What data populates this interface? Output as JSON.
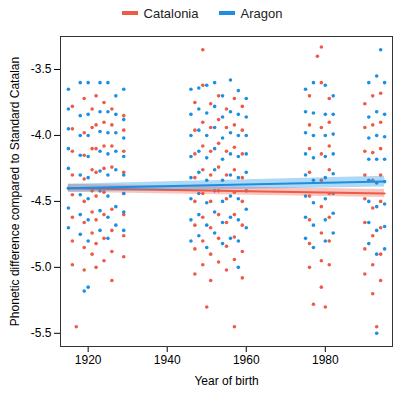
{
  "chart_data": {
    "type": "scatter",
    "xlabel": "Year of birth",
    "ylabel": "Phonetic difference compared to Standard Catalan",
    "legend": "top",
    "xlim": [
      1913,
      1997
    ],
    "ylim": [
      -5.6,
      -3.25
    ],
    "xticks": [
      1920,
      1940,
      1960,
      1980
    ],
    "yticks": [
      -5.5,
      {
        "value": -5,
        "label": "-5.0"
      },
      -4.5,
      {
        "value": -4,
        "label": "-4.0"
      },
      -3.5
    ],
    "series": [
      {
        "name": "Catalonia",
        "color": "#ee5a45",
        "marker": "circle",
        "x": [
          1916,
          1916,
          1916,
          1916,
          1916,
          1916,
          1916,
          1916,
          1919,
          1919,
          1919,
          1919,
          1919,
          1919,
          1919,
          1919,
          1921,
          1921,
          1921,
          1921,
          1921,
          1921,
          1921,
          1921,
          1922,
          1922,
          1922,
          1922,
          1922,
          1922,
          1922,
          1922,
          1924,
          1924,
          1924,
          1924,
          1924,
          1924,
          1924,
          1924,
          1926,
          1926,
          1926,
          1926,
          1926,
          1926,
          1926,
          1926,
          1929,
          1929,
          1929,
          1929,
          1929,
          1929,
          1929,
          1929,
          1947,
          1947,
          1947,
          1947,
          1947,
          1947,
          1947,
          1947,
          1949,
          1949,
          1949,
          1949,
          1949,
          1949,
          1949,
          1949,
          1951,
          1951,
          1951,
          1951,
          1951,
          1951,
          1951,
          1951,
          1953,
          1953,
          1953,
          1953,
          1953,
          1953,
          1953,
          1953,
          1955,
          1955,
          1955,
          1955,
          1955,
          1955,
          1955,
          1955,
          1957,
          1957,
          1957,
          1957,
          1957,
          1957,
          1957,
          1957,
          1959,
          1959,
          1959,
          1959,
          1959,
          1959,
          1959,
          1959,
          1976,
          1976,
          1976,
          1976,
          1976,
          1976,
          1976,
          1976,
          1979,
          1979,
          1979,
          1979,
          1979,
          1979,
          1979,
          1979,
          1981,
          1981,
          1981,
          1981,
          1981,
          1981,
          1981,
          1981,
          1990,
          1990,
          1990,
          1990,
          1990,
          1990,
          1990,
          1990,
          1992,
          1992,
          1992,
          1992,
          1992,
          1992,
          1992,
          1992,
          1994,
          1994,
          1994,
          1994,
          1994,
          1994,
          1994,
          1994,
          1917,
          1949,
          1957,
          1979,
          1978,
          1980,
          1993,
          1950,
          1977,
          1926
        ],
        "values": [
          -4.98,
          -4.8,
          -4.62,
          -4.45,
          -4.3,
          -4.12,
          -3.95,
          -3.78,
          -5.02,
          -4.85,
          -4.66,
          -4.5,
          -4.33,
          -4.15,
          -3.98,
          -3.72,
          -4.9,
          -4.74,
          -4.58,
          -4.42,
          -4.26,
          -4.1,
          -3.94,
          -3.8,
          -5.0,
          -4.82,
          -4.64,
          -4.46,
          -4.28,
          -4.1,
          -3.92,
          -3.7,
          -4.95,
          -4.78,
          -4.6,
          -4.43,
          -4.25,
          -4.08,
          -3.9,
          -3.75,
          -4.88,
          -4.72,
          -4.56,
          -4.4,
          -4.24,
          -4.08,
          -3.92,
          -3.8,
          -4.92,
          -4.76,
          -4.6,
          -4.44,
          -4.28,
          -4.12,
          -3.96,
          -3.85,
          -5.05,
          -4.86,
          -4.68,
          -4.5,
          -4.32,
          -4.14,
          -3.96,
          -3.75,
          -4.98,
          -4.8,
          -4.62,
          -4.44,
          -4.26,
          -4.08,
          -3.9,
          -3.62,
          -5.1,
          -4.9,
          -4.7,
          -4.5,
          -4.3,
          -4.12,
          -3.94,
          -3.76,
          -4.96,
          -4.78,
          -4.6,
          -4.42,
          -4.24,
          -4.06,
          -3.88,
          -3.7,
          -5.02,
          -4.84,
          -4.66,
          -4.48,
          -4.3,
          -4.12,
          -3.94,
          -3.8,
          -4.94,
          -4.77,
          -4.6,
          -4.43,
          -4.26,
          -4.09,
          -3.92,
          -3.72,
          -5.08,
          -4.88,
          -4.68,
          -4.5,
          -4.32,
          -4.14,
          -3.96,
          -3.78,
          -5.0,
          -4.82,
          -4.64,
          -4.46,
          -4.28,
          -4.1,
          -3.92,
          -3.7,
          -5.15,
          -4.95,
          -4.74,
          -4.54,
          -4.34,
          -4.14,
          -3.94,
          -3.6,
          -4.98,
          -4.8,
          -4.62,
          -4.44,
          -4.26,
          -4.08,
          -3.9,
          -3.72,
          -5.05,
          -4.86,
          -4.66,
          -4.48,
          -4.3,
          -4.12,
          -3.94,
          -3.76,
          -5.2,
          -4.98,
          -4.76,
          -4.55,
          -4.34,
          -4.13,
          -3.92,
          -3.7,
          -5.1,
          -4.9,
          -4.7,
          -4.5,
          -4.3,
          -4.1,
          -3.9,
          -3.68,
          -5.45,
          -3.35,
          -5.45,
          -3.33,
          -3.4,
          -5.3,
          -5.45,
          -5.3,
          -5.28,
          -5.1
        ],
        "trend": {
          "x": [
            1915,
            1995
          ],
          "values": [
            -4.4,
            -4.44
          ],
          "lower": [
            -4.43,
            -4.47
          ],
          "upper": [
            -4.37,
            -4.41
          ]
        }
      },
      {
        "name": "Aragon",
        "color": "#1a8fe3",
        "marker": "circle",
        "x": [
          1915,
          1915,
          1915,
          1915,
          1915,
          1915,
          1915,
          1915,
          1918,
          1918,
          1918,
          1918,
          1918,
          1918,
          1918,
          1918,
          1920,
          1920,
          1920,
          1920,
          1920,
          1920,
          1920,
          1920,
          1923,
          1923,
          1923,
          1923,
          1923,
          1923,
          1923,
          1923,
          1925,
          1925,
          1925,
          1925,
          1925,
          1925,
          1925,
          1925,
          1927,
          1927,
          1927,
          1927,
          1927,
          1927,
          1927,
          1927,
          1929,
          1929,
          1929,
          1929,
          1929,
          1929,
          1929,
          1929,
          1946,
          1946,
          1946,
          1946,
          1946,
          1946,
          1946,
          1946,
          1948,
          1948,
          1948,
          1948,
          1948,
          1948,
          1948,
          1948,
          1950,
          1950,
          1950,
          1950,
          1950,
          1950,
          1950,
          1950,
          1952,
          1952,
          1952,
          1952,
          1952,
          1952,
          1952,
          1952,
          1954,
          1954,
          1954,
          1954,
          1954,
          1954,
          1954,
          1954,
          1956,
          1956,
          1956,
          1956,
          1956,
          1956,
          1956,
          1956,
          1958,
          1958,
          1958,
          1958,
          1958,
          1958,
          1958,
          1958,
          1960,
          1960,
          1960,
          1960,
          1960,
          1960,
          1960,
          1960,
          1975,
          1975,
          1975,
          1975,
          1975,
          1975,
          1975,
          1975,
          1977,
          1977,
          1977,
          1977,
          1977,
          1977,
          1977,
          1977,
          1980,
          1980,
          1980,
          1980,
          1980,
          1980,
          1980,
          1980,
          1982,
          1982,
          1982,
          1982,
          1982,
          1982,
          1982,
          1982,
          1991,
          1991,
          1991,
          1991,
          1991,
          1991,
          1991,
          1991,
          1993,
          1993,
          1993,
          1993,
          1993,
          1993,
          1993,
          1993,
          1995,
          1995,
          1995,
          1995,
          1995,
          1995,
          1995,
          1995,
          1919,
          1993,
          1994,
          1920,
          1958
        ],
        "values": [
          -4.7,
          -4.55,
          -4.4,
          -4.25,
          -4.1,
          -3.95,
          -3.8,
          -3.65,
          -4.75,
          -4.6,
          -4.45,
          -4.3,
          -4.15,
          -4.0,
          -3.85,
          -3.6,
          -4.8,
          -4.64,
          -4.48,
          -4.32,
          -4.16,
          -4.0,
          -3.84,
          -3.6,
          -4.72,
          -4.57,
          -4.42,
          -4.27,
          -4.12,
          -3.97,
          -3.82,
          -3.6,
          -4.78,
          -4.62,
          -4.46,
          -4.3,
          -4.14,
          -3.98,
          -3.82,
          -3.6,
          -4.68,
          -4.54,
          -4.4,
          -4.26,
          -4.12,
          -3.98,
          -3.84,
          -3.7,
          -4.72,
          -4.58,
          -4.44,
          -4.3,
          -4.16,
          -4.02,
          -3.88,
          -3.65,
          -4.8,
          -4.64,
          -4.48,
          -4.32,
          -4.16,
          -4.0,
          -3.84,
          -3.65,
          -4.76,
          -4.6,
          -4.44,
          -4.28,
          -4.12,
          -3.96,
          -3.8,
          -3.64,
          -4.85,
          -4.68,
          -4.51,
          -4.34,
          -4.17,
          -4.0,
          -3.83,
          -3.62,
          -4.74,
          -4.58,
          -4.42,
          -4.26,
          -4.1,
          -3.94,
          -3.78,
          -3.6,
          -4.82,
          -4.66,
          -4.5,
          -4.34,
          -4.18,
          -4.02,
          -3.86,
          -3.7,
          -4.78,
          -4.62,
          -4.46,
          -4.3,
          -4.14,
          -3.98,
          -3.82,
          -3.58,
          -4.8,
          -4.64,
          -4.48,
          -4.32,
          -4.16,
          -4.0,
          -3.84,
          -3.66,
          -4.7,
          -4.56,
          -4.42,
          -4.28,
          -4.14,
          -4.0,
          -3.86,
          -3.72,
          -4.78,
          -4.62,
          -4.46,
          -4.3,
          -4.14,
          -3.98,
          -3.82,
          -3.65,
          -4.85,
          -4.68,
          -4.51,
          -4.34,
          -4.17,
          -4.0,
          -3.83,
          -3.6,
          -4.8,
          -4.64,
          -4.48,
          -4.32,
          -4.16,
          -4.0,
          -3.84,
          -3.62,
          -4.74,
          -4.59,
          -4.44,
          -4.29,
          -4.14,
          -3.99,
          -3.84,
          -3.7,
          -4.82,
          -4.66,
          -4.5,
          -4.34,
          -4.18,
          -4.02,
          -3.86,
          -3.6,
          -4.9,
          -4.72,
          -4.54,
          -4.36,
          -4.18,
          -4.0,
          -3.82,
          -3.55,
          -4.86,
          -4.69,
          -4.52,
          -4.35,
          -4.18,
          -4.01,
          -3.84,
          -3.6,
          -5.18,
          -5.5,
          -3.35,
          -5.15,
          -5.0
        ],
        "trend": {
          "x": [
            1915,
            1995
          ],
          "values": [
            -4.4,
            -4.35
          ],
          "lower": [
            -4.43,
            -4.39
          ],
          "upper": [
            -4.37,
            -4.31
          ]
        }
      }
    ]
  }
}
